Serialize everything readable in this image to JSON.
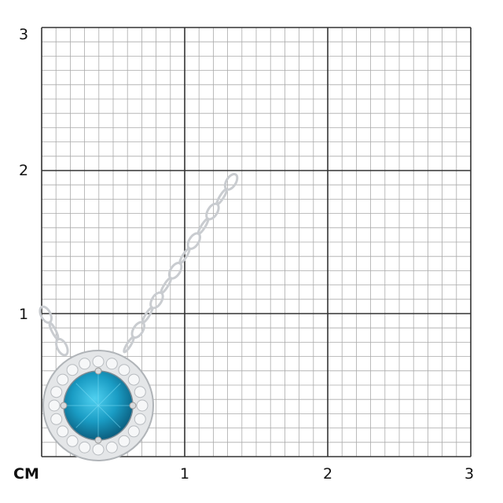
{
  "scale": {
    "unit_label": "CM",
    "x_labels": [
      "1",
      "2",
      "3"
    ],
    "y_labels": [
      "3",
      "2",
      "1"
    ],
    "max_cm": 3,
    "minor_divisions_per_cm": 10
  },
  "product": {
    "type": "pendant necklace",
    "center_stone_color": "#1a9cc4",
    "halo_color": "#e4e6e8",
    "metal_color": "#c9ccd0"
  },
  "colors": {
    "grid_major": "#333333",
    "grid_minor": "#aaaaaa"
  }
}
